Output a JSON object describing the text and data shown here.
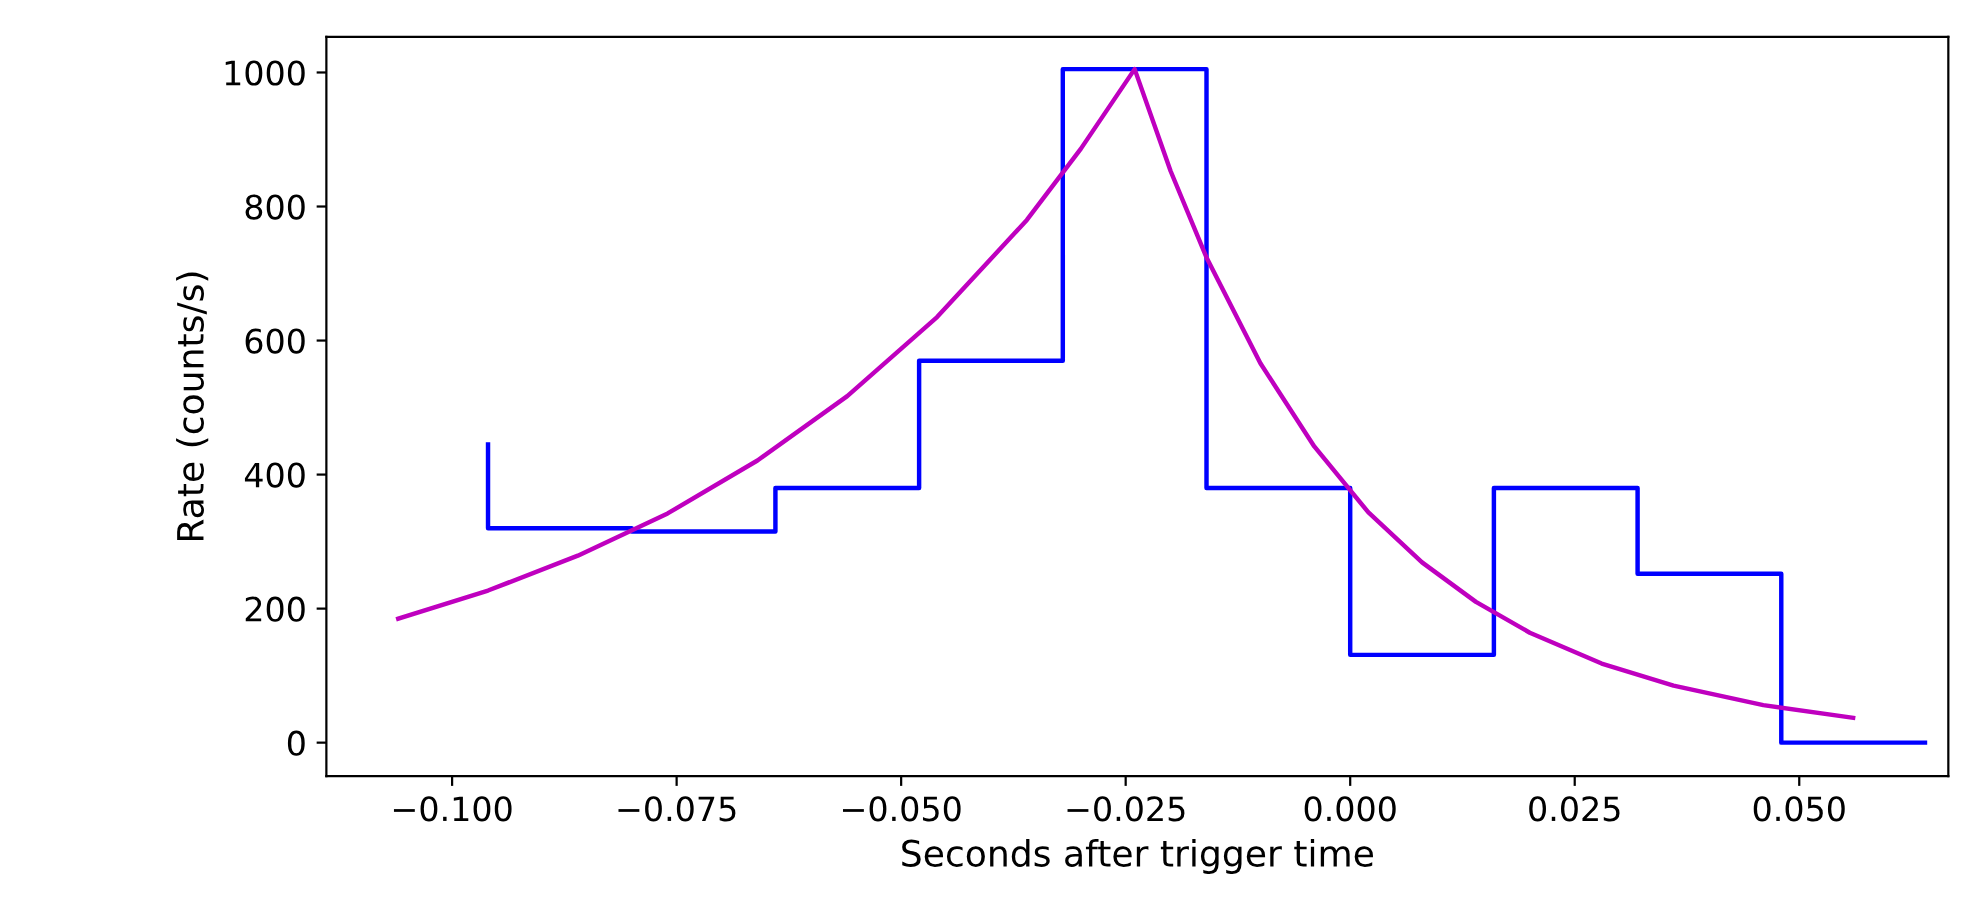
{
  "chart_data": {
    "type": "line",
    "xlabel": "Seconds after trigger time",
    "ylabel": "Rate (counts/s)",
    "xlim": [
      -0.114,
      0.0666
    ],
    "ylim": [
      -50,
      1053
    ],
    "xticks": [
      {
        "value": -0.1,
        "label": "−0.100"
      },
      {
        "value": -0.075,
        "label": "−0.075"
      },
      {
        "value": -0.05,
        "label": "−0.050"
      },
      {
        "value": -0.025,
        "label": "−0.025"
      },
      {
        "value": 0,
        "label": "0.000"
      },
      {
        "value": 0.025,
        "label": "0.025"
      },
      {
        "value": 0.05,
        "label": "0.050"
      }
    ],
    "yticks": [
      0,
      200,
      400,
      600,
      800,
      1000
    ],
    "grid": false,
    "marker": "none",
    "line_style": "solid",
    "series": [
      {
        "type": "step",
        "color": "#0000ff",
        "x": [
          -0.096,
          -0.08,
          -0.064,
          -0.048,
          -0.032,
          -0.016,
          0,
          0.016,
          0.032,
          0.048,
          0.064
        ],
        "values": [
          445,
          320,
          315,
          380,
          570,
          1005,
          380,
          131,
          380,
          252,
          0
        ]
      },
      {
        "color": "#bf00bf",
        "x": [
          -0.106,
          -0.096,
          -0.086,
          -0.076,
          -0.066,
          -0.056,
          -0.046,
          -0.036,
          -0.03,
          -0.024,
          -0.02,
          -0.016,
          -0.01,
          -0.004,
          0.002,
          0.008,
          0.014,
          0.02,
          0.028,
          0.036,
          0.046,
          0.056
        ],
        "values": [
          185,
          227,
          279,
          342,
          421,
          517,
          635,
          780,
          886,
          1005,
          853,
          724,
          566,
          442,
          344,
          269,
          210,
          164,
          118,
          85,
          56,
          37
        ]
      }
    ]
  }
}
